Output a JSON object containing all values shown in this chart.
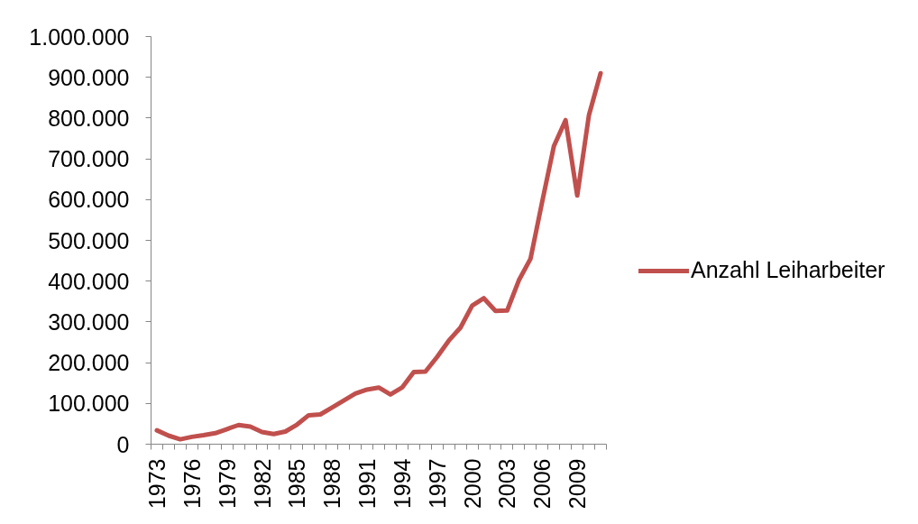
{
  "chart_data": {
    "type": "line",
    "categories": [
      "1973",
      null,
      null,
      "1976",
      null,
      null,
      "1979",
      null,
      null,
      "1982",
      null,
      null,
      "1985",
      null,
      null,
      "1988",
      null,
      null,
      "1991",
      null,
      null,
      "1994",
      null,
      null,
      "1997",
      null,
      null,
      "2000",
      null,
      null,
      "2003",
      null,
      null,
      "2006",
      null,
      null,
      "2009",
      null,
      null
    ],
    "series": [
      {
        "name": "Anzahl Leiharbeiter",
        "color": "#c0504d",
        "values": [
          34000,
          21000,
          12000,
          18000,
          22000,
          27000,
          37000,
          47000,
          43000,
          30000,
          25000,
          31000,
          48000,
          71000,
          73000,
          90000,
          107000,
          124000,
          134000,
          139000,
          122000,
          139000,
          177000,
          178000,
          214000,
          254000,
          286000,
          340000,
          358000,
          327000,
          328000,
          402000,
          455000,
          595000,
          731000,
          795000,
          610000,
          807000,
          910000
        ]
      }
    ],
    "ylim": [
      0,
      1000000
    ],
    "yticks": [
      0,
      {
        "value": 100000,
        "label": "100.000"
      },
      {
        "value": 200000,
        "label": "200.000"
      },
      {
        "value": 300000,
        "label": "300.000"
      },
      {
        "value": 400000,
        "label": "400.000"
      },
      {
        "value": 500000,
        "label": "500.000"
      },
      {
        "value": 600000,
        "label": "600.000"
      },
      {
        "value": 700000,
        "label": "700.000"
      },
      {
        "value": 800000,
        "label": "800.000"
      },
      {
        "value": 900000,
        "label": "900.000"
      },
      {
        "value": 1000000,
        "label": "1.000.000"
      }
    ],
    "legend": "right",
    "line_style": "solid"
  }
}
